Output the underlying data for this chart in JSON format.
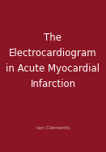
{
  "background_color": "#8C1525",
  "title_lines": [
    "The",
    "Electrocardiogram",
    "in Acute Myocardial",
    "Infarction"
  ],
  "author": "Ian Clements",
  "title_color": "#FFFFFF",
  "author_color": "#D0B0B8",
  "title_fontsize": 8.5,
  "author_fontsize": 4.5,
  "fig_width": 1.31,
  "fig_height": 1.87
}
